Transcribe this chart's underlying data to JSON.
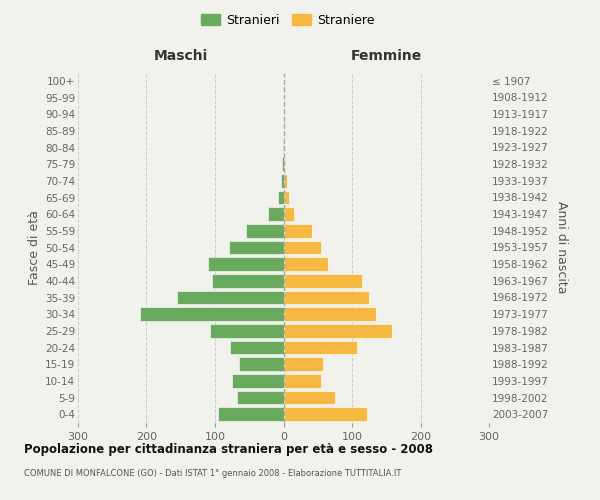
{
  "age_groups_bottom_to_top": [
    "0-4",
    "5-9",
    "10-14",
    "15-19",
    "20-24",
    "25-29",
    "30-34",
    "35-39",
    "40-44",
    "45-49",
    "50-54",
    "55-59",
    "60-64",
    "65-69",
    "70-74",
    "75-79",
    "80-84",
    "85-89",
    "90-94",
    "95-99",
    "100+"
  ],
  "birth_years_bottom_to_top": [
    "2003-2007",
    "1998-2002",
    "1993-1997",
    "1988-1992",
    "1983-1987",
    "1978-1982",
    "1973-1977",
    "1968-1972",
    "1963-1967",
    "1958-1962",
    "1953-1957",
    "1948-1952",
    "1943-1947",
    "1938-1942",
    "1933-1937",
    "1928-1932",
    "1923-1927",
    "1918-1922",
    "1913-1917",
    "1908-1912",
    "≤ 1907"
  ],
  "maschi_bottom_to_top": [
    95,
    68,
    75,
    65,
    78,
    108,
    210,
    155,
    105,
    110,
    80,
    55,
    22,
    8,
    4,
    2,
    1,
    0,
    0,
    0,
    0
  ],
  "femmine_bottom_to_top": [
    122,
    75,
    55,
    58,
    108,
    158,
    135,
    125,
    115,
    65,
    55,
    42,
    15,
    8,
    5,
    2,
    1,
    1,
    0,
    0,
    0
  ],
  "male_color": "#6aaa5f",
  "female_color": "#f5b942",
  "background_color": "#f2f2ed",
  "grid_color": "#cccccc",
  "title": "Popolazione per cittadinanza straniera per età e sesso - 2008",
  "subtitle": "COMUNE DI MONFALCONE (GO) - Dati ISTAT 1° gennaio 2008 - Elaborazione TUTTITALIA.IT",
  "xlabel_left": "Maschi",
  "xlabel_right": "Femmine",
  "ylabel_left": "Fasce di età",
  "ylabel_right": "Anni di nascita",
  "legend_male": "Stranieri",
  "legend_female": "Straniere",
  "xlim": 300
}
